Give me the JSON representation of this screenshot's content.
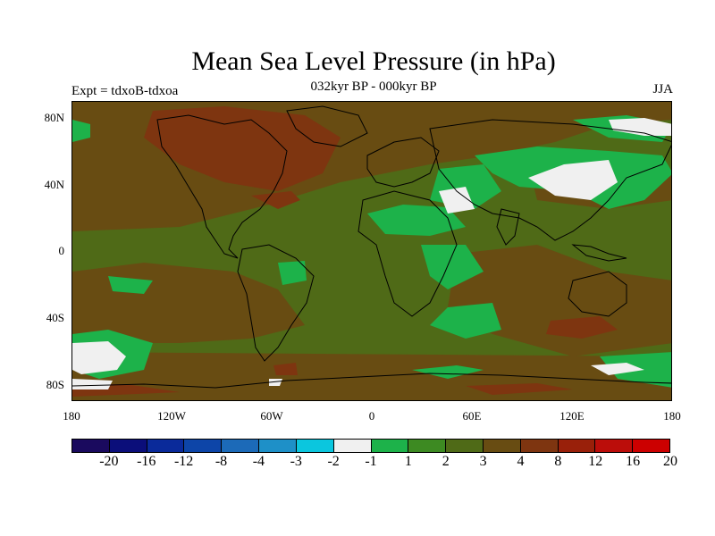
{
  "title": "Mean Sea Level Pressure (in hPa)",
  "subtitle": "032kyr BP - 000kyr BP",
  "left_string": "Expt = tdxoB-tdxoa",
  "right_string": "JJA",
  "lat_labels": [
    "80N",
    "40N",
    "0",
    "40S",
    "80S"
  ],
  "lon_labels": [
    "180",
    "120W",
    "60W",
    "0",
    "60E",
    "120E",
    "180"
  ],
  "colorbar": {
    "colors": [
      "#1a0a5e",
      "#0b0e7a",
      "#0a2a9a",
      "#0d45a8",
      "#1c6ab8",
      "#1e90c8",
      "#0bc6de",
      "#f0f0f0",
      "#1db24a",
      "#3d8a22",
      "#4f6a17",
      "#684c12",
      "#7e3510",
      "#99200a",
      "#bb0d0a",
      "#cc0000"
    ],
    "labels": [
      "-20",
      "-16",
      "-12",
      "-8",
      "-4",
      "-3",
      "-2",
      "-1",
      "1",
      "2",
      "3",
      "4",
      "8",
      "12",
      "16",
      "20"
    ]
  },
  "chart_data": {
    "type": "heatmap",
    "title": "Mean Sea Level Pressure (in hPa)",
    "subtitle": "032kyr BP - 000kyr BP",
    "left_string": "Expt = tdxoB-tdxoa",
    "right_string": "JJA",
    "x_range": [
      -180,
      180
    ],
    "y_range": [
      -90,
      90
    ],
    "levels": [
      -20,
      -16,
      -12,
      -8,
      -4,
      -3,
      -2,
      -1,
      1,
      2,
      3,
      4,
      8,
      12,
      16,
      20
    ]
  }
}
